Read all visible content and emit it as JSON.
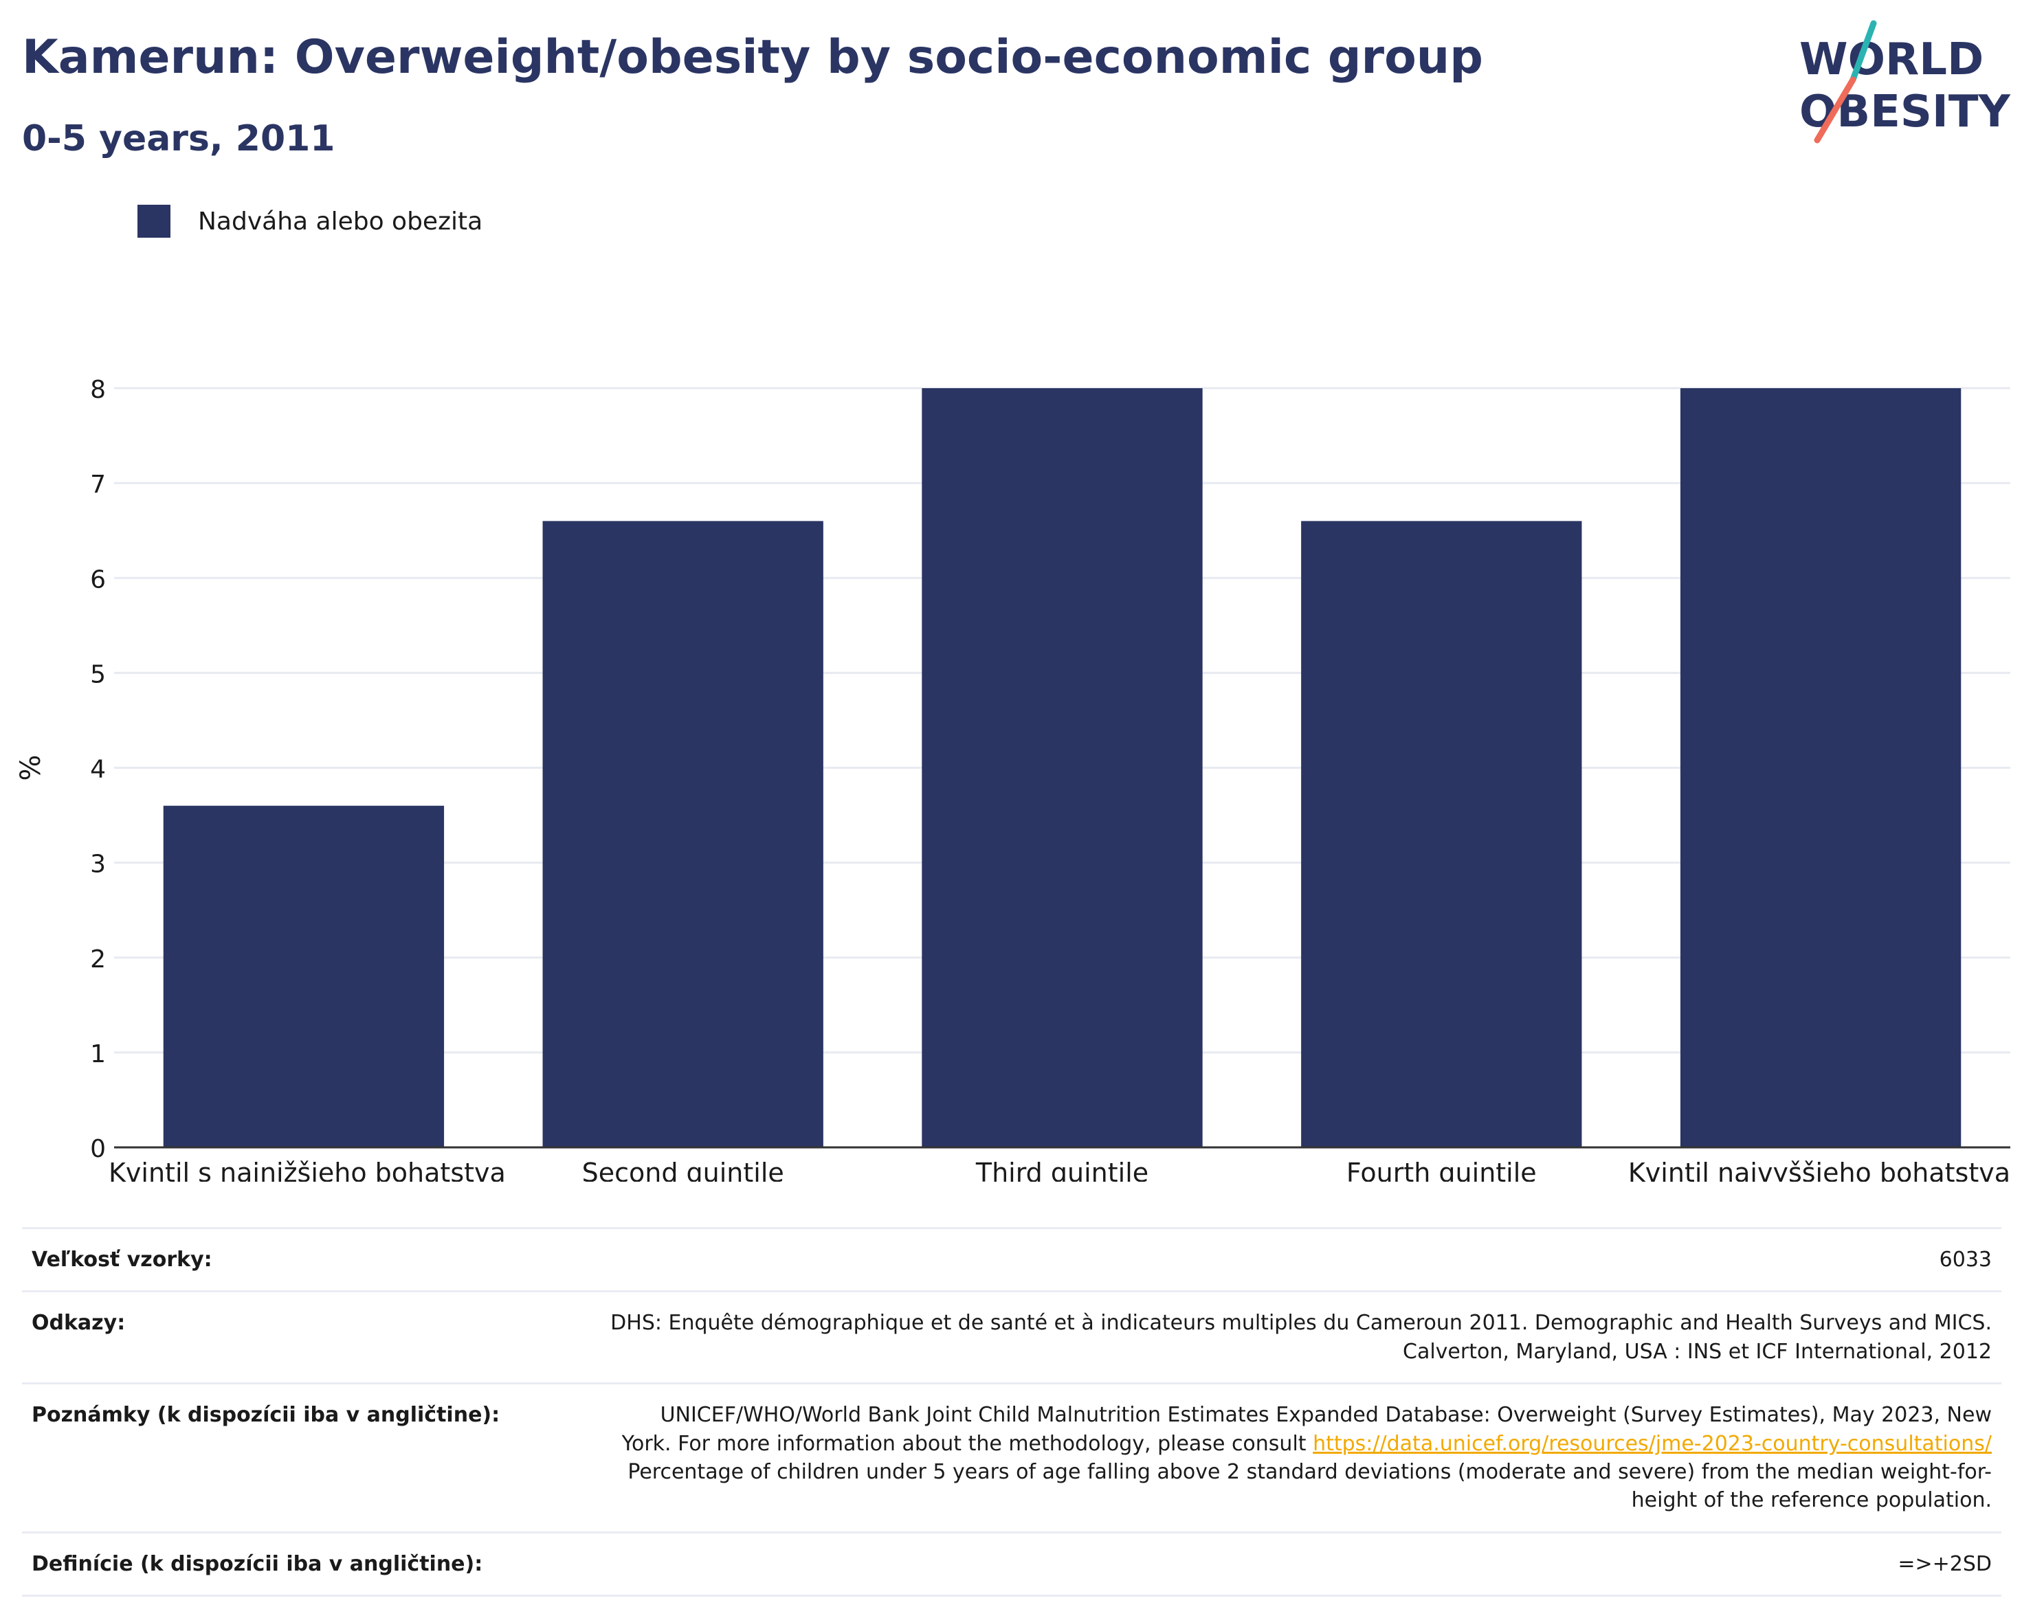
{
  "header": {
    "title": "Kamerun: Overweight/obesity by socio-economic group",
    "subtitle": "0-5 years, 2011"
  },
  "logo": {
    "line1": "WORLD",
    "line2": "OBESITY",
    "colors": {
      "text": "#2b3563",
      "teal": "#2bb3b1",
      "coral": "#ef6b5a"
    }
  },
  "legend": {
    "items": [
      {
        "label": "Nadváha alebo obezita",
        "color": "#2b3563"
      }
    ]
  },
  "chart_data": {
    "type": "bar",
    "categories": [
      "Kvintil s najnižšieho bohatstva",
      "Second quintile",
      "Third quintile",
      "Fourth quintile",
      "Kvintil najvyššieho bohatstva"
    ],
    "series": [
      {
        "name": "Nadváha alebo obezita",
        "values": [
          3.6,
          6.6,
          8.0,
          6.6,
          8.0
        ],
        "color": "#2b3563"
      }
    ],
    "ylabel": "%",
    "xlabel": "",
    "ylim": [
      0,
      8
    ],
    "yticks": [
      0,
      1,
      2,
      3,
      4,
      5,
      6,
      7,
      8
    ],
    "grid": true,
    "legend_position": "top-left"
  },
  "meta": {
    "sample_size": {
      "label": "Veľkosť vzorky:",
      "value": "6033"
    },
    "references": {
      "label": "Odkazy:",
      "line1": "DHS: Enquête démographique et de santé et à indicateurs multiples du Cameroun 2011. Demographic and Health Surveys and MICS.",
      "line2": "Calverton, Maryland, USA : INS et ICF International, 2012"
    },
    "notes": {
      "label": "Poznámky (k dispozícii iba v angličtine):",
      "line1": "UNICEF/WHO/World Bank Joint Child Malnutrition Estimates Expanded Database: Overweight (Survey Estimates), May 2023, New",
      "line2_pre": "York. For more information about the methodology, please consult",
      "link": "https://data.unicef.org/resources/jme-2023-country-consultations/",
      "line3": "Percentage of children under 5 years of age falling above 2 standard deviations (moderate and severe) from the median weight-for-",
      "line4": "height of the reference population."
    },
    "definitions": {
      "label": "Definície (k dispozícii iba v angličtine):",
      "value": "=>+2SD"
    }
  }
}
